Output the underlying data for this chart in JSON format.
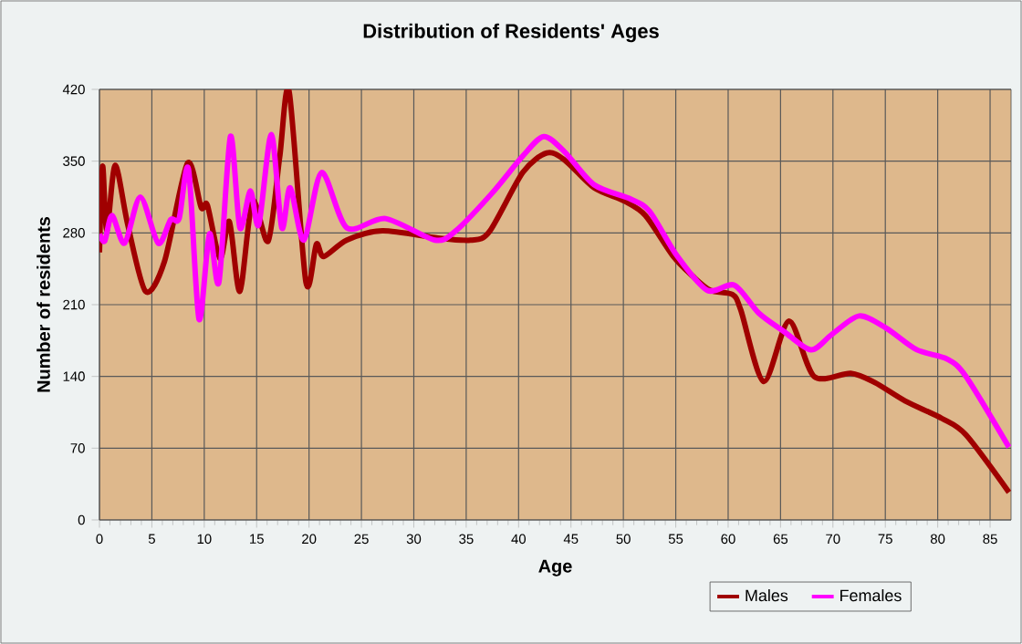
{
  "chart_data": {
    "type": "line",
    "title": "Distribution of Residents' Ages",
    "xlabel": "Age",
    "ylabel": "Number of residents",
    "xlim": [
      0,
      87
    ],
    "ylim": [
      0,
      420
    ],
    "xticks": [
      0,
      5,
      10,
      15,
      20,
      25,
      30,
      35,
      40,
      45,
      50,
      55,
      60,
      65,
      70,
      75,
      80,
      85
    ],
    "yticks": [
      0,
      70,
      140,
      210,
      280,
      350,
      420
    ],
    "grid": true,
    "legend": "bottom right",
    "series": [
      {
        "name": "Males",
        "color": "#a00000",
        "x": [
          0,
          0.3,
          0.7,
          1.5,
          2.7,
          4.4,
          6.2,
          8.4,
          9.7,
          10.3,
          11.5,
          12.4,
          13.4,
          14.6,
          16.1,
          17.2,
          18.1,
          19.7,
          20.7,
          21.4,
          23.6,
          27,
          32.3,
          35.4,
          37.2,
          40.4,
          42.7,
          44.4,
          47.2,
          50.1,
          52.1,
          54.7,
          56.6,
          58.3,
          60.4,
          61.2,
          63.4,
          65.8,
          68.2,
          71.7,
          74,
          76.9,
          80.4,
          82.7,
          86.8
        ],
        "values": [
          261,
          345,
          282,
          346,
          288,
          223,
          252,
          348,
          305,
          307,
          255,
          291,
          223,
          311,
          272,
          354,
          418,
          232,
          269,
          257,
          273,
          282,
          275,
          273,
          281,
          339,
          358,
          351,
          324,
          311,
          297,
          258,
          238,
          224,
          220,
          205,
          135,
          194,
          140,
          143,
          134,
          116,
          99,
          83,
          27
        ]
      },
      {
        "name": "Females",
        "color": "#ff00ff",
        "x": [
          0,
          0.5,
          1.2,
          2.4,
          3.9,
          5.6,
          6.8,
          7.6,
          8.5,
          9.5,
          10.5,
          11.4,
          12.5,
          13.4,
          14.4,
          15.2,
          16.4,
          17.4,
          18.2,
          19.5,
          21.2,
          23.6,
          27.3,
          32,
          34,
          37.4,
          40.4,
          42.4,
          44.4,
          47.2,
          50.7,
          52.5,
          55.1,
          58,
          60.6,
          62.9,
          65.3,
          67.9,
          69.9,
          72.5,
          75.1,
          78,
          80.9,
          82.7,
          86.8
        ],
        "values": [
          279,
          272,
          297,
          270,
          315,
          270,
          293,
          294,
          342,
          196,
          279,
          232,
          374,
          285,
          321,
          288,
          376,
          285,
          324,
          273,
          339,
          285,
          294,
          273,
          282,
          318,
          355,
          374,
          359,
          327,
          313,
          301,
          258,
          224,
          229,
          202,
          184,
          166,
          181,
          199,
          187,
          166,
          157,
          140,
          71
        ]
      }
    ]
  }
}
